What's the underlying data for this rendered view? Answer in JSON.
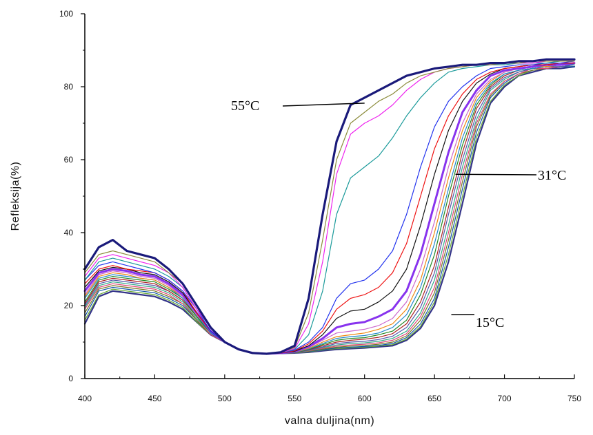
{
  "chart_data": {
    "type": "line",
    "xlabel": "valna duljina(nm)",
    "ylabel": "Refleksija(%)",
    "xlim": [
      400,
      750
    ],
    "ylim": [
      0,
      100
    ],
    "x_ticks": [
      400,
      450,
      500,
      550,
      600,
      650,
      700,
      750
    ],
    "y_ticks": [
      0,
      20,
      40,
      60,
      80,
      100
    ],
    "grid": false,
    "legend": "none",
    "annotations": [
      {
        "text": "55°C",
        "x": 600,
        "y": 75.5
      },
      {
        "text": "31°C",
        "x": 665,
        "y": 56
      },
      {
        "text": "15°C",
        "x": 662,
        "y": 17.5
      }
    ],
    "x": [
      400,
      410,
      420,
      430,
      440,
      450,
      460,
      470,
      480,
      490,
      500,
      510,
      520,
      530,
      540,
      550,
      560,
      570,
      580,
      590,
      600,
      610,
      620,
      630,
      640,
      650,
      660,
      670,
      680,
      690,
      700,
      710,
      720,
      730,
      740,
      750
    ],
    "series": [
      {
        "color": "#1a1a7a",
        "width": 3.2,
        "values": [
          30,
          36,
          38,
          35,
          34,
          33,
          30,
          26,
          20,
          14,
          10,
          8,
          7,
          6.8,
          7.2,
          9,
          22,
          45,
          65,
          75,
          77,
          79,
          81,
          83,
          84,
          85,
          85.5,
          86,
          86,
          86.5,
          86.5,
          87,
          87,
          87.5,
          87.5,
          87.5
        ]
      },
      {
        "color": "#8b8b3a",
        "width": 1.2,
        "values": [
          29,
          34,
          35,
          34,
          33,
          32,
          29,
          26,
          20,
          14,
          10,
          8,
          7,
          6.8,
          7.2,
          8.5,
          18,
          38,
          60,
          70,
          73,
          76,
          78,
          81,
          83,
          84,
          85,
          85.5,
          86,
          86,
          86.5,
          86.5,
          87,
          87,
          87,
          87
        ]
      },
      {
        "color": "#ee22ee",
        "width": 1.2,
        "values": [
          28,
          33,
          34,
          33,
          32,
          31,
          29,
          25,
          19,
          14,
          10,
          8,
          7,
          6.8,
          7.1,
          8.2,
          15,
          32,
          56,
          67,
          70,
          72,
          75,
          79,
          82,
          84,
          85,
          85.5,
          86,
          86,
          86.5,
          86.5,
          86.5,
          87,
          87,
          87
        ]
      },
      {
        "color": "#1a9a9a",
        "width": 1.2,
        "values": [
          27,
          32,
          33,
          32,
          31,
          30,
          28,
          25,
          19,
          14,
          10,
          8,
          7,
          6.8,
          7.1,
          8,
          12,
          24,
          45,
          55,
          58,
          61,
          66,
          72,
          77,
          81,
          84,
          85,
          85.5,
          86,
          86,
          86.5,
          86.5,
          86.5,
          87,
          87
        ]
      },
      {
        "color": "#2233ee",
        "width": 1.2,
        "values": [
          27,
          31,
          32,
          31,
          30,
          29,
          27,
          24,
          19,
          13,
          10,
          8,
          7,
          6.8,
          7.1,
          7.8,
          10,
          14,
          22,
          26,
          27,
          30,
          35,
          45,
          58,
          69,
          76,
          80,
          83,
          85,
          85.5,
          86,
          86,
          86.5,
          86.5,
          87
        ]
      },
      {
        "color": "#ee1111",
        "width": 1.2,
        "values": [
          26,
          30,
          31,
          30,
          29.5,
          29,
          27,
          24,
          18,
          13,
          10,
          8,
          7,
          6.8,
          7,
          7.6,
          9.5,
          13,
          19,
          22,
          23,
          25,
          29,
          37,
          50,
          63,
          72,
          78,
          82,
          84,
          85,
          85.5,
          86,
          86,
          86.5,
          86.5
        ]
      },
      {
        "color": "#111111",
        "width": 1.2,
        "values": [
          25,
          29.5,
          30.5,
          30,
          29,
          28.5,
          26.5,
          23.5,
          18,
          13,
          10,
          8,
          7,
          6.8,
          7,
          7.5,
          9,
          12,
          16.5,
          18.5,
          19,
          21,
          24,
          30,
          42,
          56,
          68,
          76,
          81,
          83.5,
          85,
          85.5,
          86,
          86,
          86.5,
          86.5
        ]
      },
      {
        "color": "#8833ee",
        "width": 3.0,
        "values": [
          24,
          29,
          30,
          29.5,
          28.5,
          28,
          26,
          23,
          18,
          13,
          10,
          8,
          7,
          6.8,
          7,
          7.4,
          8.8,
          11,
          14,
          15,
          15.5,
          17,
          19,
          24,
          34,
          48,
          62,
          73,
          79,
          83,
          84.5,
          85,
          85.5,
          86,
          86,
          86.5
        ]
      },
      {
        "color": "#cc66cc",
        "width": 1.2,
        "values": [
          23,
          28.5,
          29.5,
          29,
          28,
          27.5,
          25.5,
          22.5,
          17.5,
          13,
          10,
          8,
          7,
          6.8,
          7,
          7.3,
          8.5,
          10.5,
          12.5,
          13,
          13.5,
          14.5,
          16.5,
          21,
          30,
          43,
          58,
          70,
          78,
          82,
          84,
          85,
          85.5,
          86,
          86,
          86.5
        ]
      },
      {
        "color": "#ee8811",
        "width": 1.2,
        "values": [
          22.5,
          28,
          29,
          28.5,
          27.5,
          27,
          25,
          22.5,
          17.5,
          13,
          10,
          8,
          7,
          6.8,
          7,
          7.2,
          8.3,
          10,
          11.5,
          12,
          12.5,
          13.5,
          15,
          19,
          27,
          40,
          55,
          68,
          77,
          81.5,
          84,
          85,
          85.5,
          85.5,
          86,
          86.5
        ]
      },
      {
        "color": "#2288cc",
        "width": 1.2,
        "values": [
          22,
          27.5,
          28.5,
          28,
          27.5,
          27,
          25,
          22,
          17.5,
          12.5,
          10,
          8,
          7,
          6.8,
          7,
          7.2,
          8.1,
          9.6,
          11,
          11.5,
          11.8,
          12.5,
          14,
          17.5,
          25,
          37,
          52,
          66,
          76,
          81,
          83.5,
          84.5,
          85,
          85.5,
          86,
          86
        ]
      },
      {
        "color": "#228822",
        "width": 1.2,
        "values": [
          21,
          27,
          28,
          27.5,
          27,
          26.5,
          24.5,
          22,
          17,
          12.5,
          10,
          8,
          7,
          6.8,
          7,
          7.1,
          8,
          9.3,
          10.5,
          11,
          11.2,
          12,
          13,
          16,
          23,
          34,
          50,
          64,
          75,
          80.5,
          83.5,
          84.5,
          85,
          85.5,
          86,
          86
        ]
      },
      {
        "color": "#aa2222",
        "width": 1.2,
        "values": [
          20.5,
          26.5,
          27.5,
          27,
          26.5,
          26,
          24,
          21.5,
          17,
          12.5,
          10,
          8,
          7,
          6.8,
          7,
          7.1,
          7.9,
          9,
          10,
          10.5,
          10.8,
          11.3,
          12.3,
          15,
          21,
          31,
          47,
          62,
          74,
          80,
          83,
          84.5,
          85,
          85.5,
          86,
          86
        ]
      },
      {
        "color": "#5555aa",
        "width": 1.2,
        "values": [
          20,
          26,
          27,
          26.5,
          26,
          25.5,
          24,
          21.5,
          17,
          12.5,
          10,
          8,
          7,
          6.8,
          6.9,
          7,
          7.8,
          8.7,
          9.6,
          10,
          10.2,
          10.7,
          11.6,
          14,
          19.5,
          29,
          45,
          60,
          72.5,
          79.5,
          82.5,
          84,
          85,
          85.5,
          85.5,
          86
        ]
      },
      {
        "color": "#33aa88",
        "width": 1.2,
        "values": [
          19.5,
          25.5,
          26.5,
          26,
          25.5,
          25,
          23.5,
          21,
          16.5,
          12.5,
          10,
          8,
          7,
          6.8,
          6.9,
          7,
          7.7,
          8.5,
          9.2,
          9.6,
          9.8,
          10.2,
          11,
          13,
          18,
          27,
          42,
          58,
          71,
          79,
          82,
          84,
          85,
          85.5,
          85.5,
          86
        ]
      },
      {
        "color": "#dd4477",
        "width": 1.2,
        "values": [
          19,
          25,
          26,
          25.5,
          25,
          24.5,
          23,
          20.5,
          16.5,
          12,
          10,
          8,
          7,
          6.8,
          6.9,
          7,
          7.6,
          8.3,
          8.9,
          9.2,
          9.4,
          9.8,
          10.5,
          12.3,
          17,
          25,
          40,
          56,
          70,
          78,
          81.5,
          83.5,
          85,
          85,
          85.5,
          86
        ]
      },
      {
        "color": "#777722",
        "width": 1.2,
        "values": [
          18,
          24.5,
          25.5,
          25,
          24.5,
          24,
          22.5,
          20.5,
          16,
          12,
          10,
          8,
          7,
          6.8,
          6.9,
          7,
          7.5,
          8.1,
          8.6,
          8.9,
          9.1,
          9.4,
          10,
          11.7,
          16,
          23.5,
          38,
          54,
          69,
          77.5,
          81.5,
          83.5,
          84.5,
          85,
          85.5,
          86
        ]
      },
      {
        "color": "#1155aa",
        "width": 1.2,
        "values": [
          17,
          24,
          25,
          24.5,
          24,
          23.5,
          22,
          20,
          16,
          12,
          10,
          8,
          7,
          6.8,
          6.9,
          7,
          7.4,
          7.9,
          8.4,
          8.6,
          8.8,
          9.1,
          9.6,
          11.2,
          15,
          22,
          36,
          52,
          67.5,
          77,
          81,
          83.5,
          84.5,
          85,
          85.5,
          85.5
        ]
      },
      {
        "color": "#66aa33",
        "width": 1.2,
        "values": [
          16,
          23,
          24.5,
          24,
          23.5,
          23,
          21.5,
          19.5,
          15.5,
          12,
          10,
          8,
          7,
          6.8,
          6.9,
          7,
          7.3,
          7.8,
          8.2,
          8.4,
          8.6,
          8.9,
          9.3,
          10.8,
          14.3,
          21,
          34,
          50,
          66,
          76,
          80.5,
          83,
          84.5,
          85,
          85.5,
          85.5
        ]
      },
      {
        "color": "#333388",
        "width": 2.2,
        "values": [
          15,
          22.5,
          24,
          23.5,
          23,
          22.5,
          21,
          19,
          15.5,
          12,
          10,
          8,
          7,
          6.8,
          6.9,
          7,
          7.2,
          7.6,
          8,
          8.2,
          8.4,
          8.7,
          9,
          10.5,
          13.8,
          20,
          32,
          48,
          64.5,
          75.5,
          80,
          83,
          84,
          85,
          85,
          85.5
        ]
      }
    ]
  }
}
